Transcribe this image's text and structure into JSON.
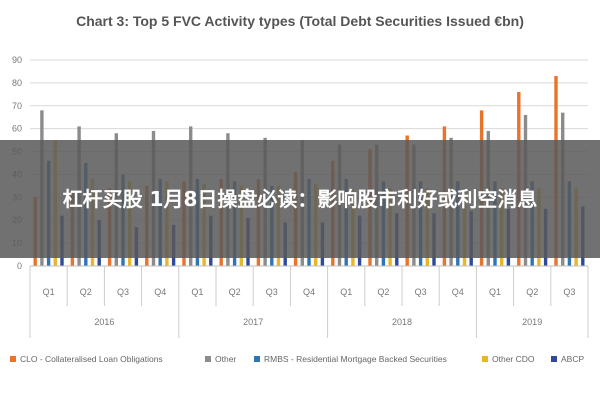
{
  "headline": "杠杆买股 1月8日操盘必读：影响股市利好或利空消息",
  "colors": {
    "CLO": "#E8732A",
    "Other": "#8C8C8C",
    "RMBS": "#2E75B6",
    "CDO": "#E8B52B",
    "ABCP": "#2F4A9A"
  },
  "chart_data": {
    "type": "bar",
    "title": "Chart 3: Top 5 FVC Activity types (Total Debt Securities Issued €bn)",
    "categories": [
      "Q1",
      "Q2",
      "Q3",
      "Q4",
      "Q1",
      "Q2",
      "Q3",
      "Q4",
      "Q1",
      "Q2",
      "Q3",
      "Q4",
      "Q1",
      "Q2",
      "Q3"
    ],
    "year_groups": [
      {
        "label": "2016",
        "count": 4
      },
      {
        "label": "2017",
        "count": 4
      },
      {
        "label": "2018",
        "count": 4
      },
      {
        "label": "2019",
        "count": 3
      }
    ],
    "ylim": [
      0,
      90
    ],
    "yticks": [
      0,
      10,
      20,
      30,
      40,
      50,
      60,
      70,
      80,
      90
    ],
    "grid": true,
    "legend": "bottom",
    "series": [
      {
        "name": "CLO - Collateralised Loan Obligations",
        "key": "CLO",
        "values": [
          30,
          32,
          34,
          35,
          37,
          38,
          38,
          41,
          46,
          51,
          57,
          61,
          68,
          76,
          83
        ]
      },
      {
        "name": "Other",
        "key": "Other",
        "values": [
          68,
          61,
          58,
          59,
          61,
          58,
          56,
          55,
          53,
          53,
          53,
          56,
          59,
          66,
          67
        ]
      },
      {
        "name": "RMBS - Residential Mortgage Backed Securities",
        "key": "RMBS",
        "values": [
          46,
          45,
          40,
          38,
          38,
          37,
          35,
          38,
          38,
          37,
          37,
          37,
          37,
          37,
          37
        ]
      },
      {
        "name": "Other CDO",
        "key": "CDO",
        "values": [
          55,
          38,
          37,
          37,
          36,
          35,
          35,
          36,
          33,
          34,
          34,
          34,
          34,
          34,
          34
        ]
      },
      {
        "name": "ABCP",
        "key": "ABCP",
        "values": [
          22,
          20,
          17,
          18,
          22,
          21,
          19,
          19,
          22,
          23,
          23,
          24,
          25,
          25,
          26
        ]
      }
    ]
  }
}
